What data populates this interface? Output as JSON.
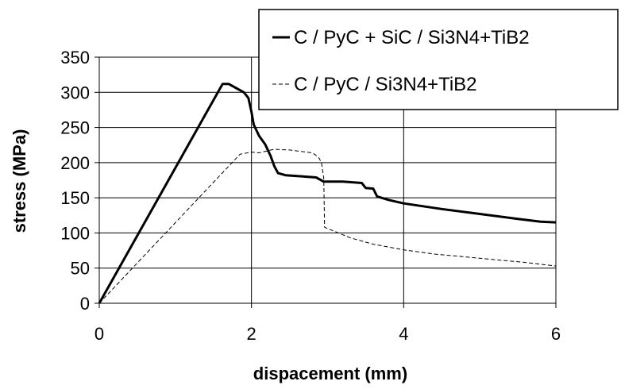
{
  "chart_data": {
    "type": "line",
    "xlabel": "dispacement (mm)",
    "ylabel": "stress (MPa)",
    "xlim": [
      0,
      6
    ],
    "ylim": [
      0,
      350
    ],
    "x_ticks": [
      "0",
      "2",
      "4",
      "6"
    ],
    "y_ticks": [
      "0",
      "50",
      "100",
      "150",
      "200",
      "250",
      "300",
      "350"
    ],
    "grid": "major gridlines on both axes",
    "legend_position": "top-right",
    "series": [
      {
        "name": "C / PyC + SiC / Si3N4+TiB2",
        "style": "solid-thick",
        "color": "#000000",
        "points": [
          [
            0,
            0
          ],
          [
            1.62,
            312
          ],
          [
            1.7,
            312
          ],
          [
            1.8,
            306
          ],
          [
            1.9,
            300
          ],
          [
            1.96,
            292
          ],
          [
            2.0,
            272
          ],
          [
            2.03,
            254
          ],
          [
            2.1,
            238
          ],
          [
            2.18,
            226
          ],
          [
            2.25,
            210
          ],
          [
            2.3,
            195
          ],
          [
            2.35,
            185
          ],
          [
            2.45,
            182
          ],
          [
            2.6,
            181
          ],
          [
            2.85,
            179
          ],
          [
            2.95,
            173
          ],
          [
            3.2,
            173
          ],
          [
            3.45,
            171
          ],
          [
            3.5,
            164
          ],
          [
            3.6,
            163
          ],
          [
            3.65,
            152
          ],
          [
            3.8,
            147
          ],
          [
            4.0,
            142
          ],
          [
            4.5,
            134
          ],
          [
            5.0,
            127
          ],
          [
            5.5,
            120
          ],
          [
            5.8,
            116
          ],
          [
            6.0,
            115
          ]
        ]
      },
      {
        "name": "C / PyC / Si3N4+TiB2",
        "style": "dashed-thin",
        "color": "#000000",
        "points": [
          [
            0,
            0
          ],
          [
            1.85,
            212
          ],
          [
            2.0,
            215
          ],
          [
            2.1,
            214
          ],
          [
            2.3,
            219
          ],
          [
            2.5,
            218
          ],
          [
            2.65,
            216
          ],
          [
            2.8,
            214
          ],
          [
            2.88,
            208
          ],
          [
            2.92,
            200
          ],
          [
            2.95,
            178
          ],
          [
            2.96,
            108
          ],
          [
            3.1,
            102
          ],
          [
            3.3,
            93
          ],
          [
            3.6,
            84
          ],
          [
            4.0,
            76
          ],
          [
            4.4,
            70
          ],
          [
            4.8,
            66
          ],
          [
            5.2,
            62
          ],
          [
            5.6,
            58
          ],
          [
            6.0,
            53
          ]
        ]
      }
    ]
  }
}
